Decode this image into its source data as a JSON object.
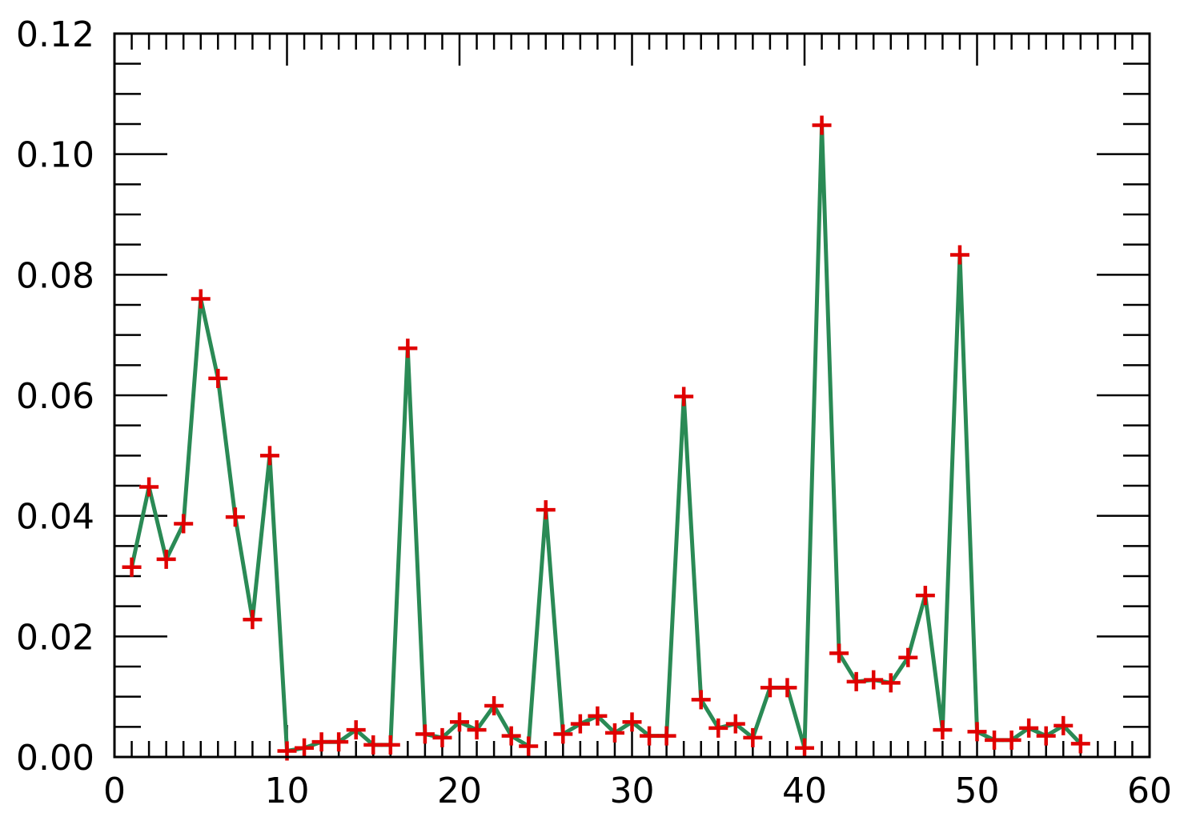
{
  "chart_data": {
    "type": "line",
    "title": "",
    "xlabel": "",
    "ylabel": "",
    "xlim": [
      0,
      60
    ],
    "ylim": [
      0,
      0.12
    ],
    "xticks": [
      0,
      10,
      20,
      30,
      40,
      50,
      60
    ],
    "xtick_labels": [
      "0",
      "10",
      "20",
      "30",
      "40",
      "50",
      "60"
    ],
    "yticks": [
      0,
      0.02,
      0.04,
      0.06,
      0.08,
      0.1,
      0.12
    ],
    "ytick_labels": [
      "0.00",
      "0.02",
      "0.04",
      "0.06",
      "0.08",
      "0.10",
      "0.12"
    ],
    "grid": false,
    "line_color": "#2a8a55",
    "marker_color": "#e00000",
    "marker": "plus",
    "x": [
      1,
      2,
      3,
      4,
      5,
      6,
      7,
      8,
      9,
      10,
      11,
      12,
      13,
      14,
      15,
      16,
      17,
      18,
      19,
      20,
      21,
      22,
      23,
      24,
      25,
      26,
      27,
      28,
      29,
      30,
      31,
      32,
      33,
      34,
      35,
      36,
      37,
      38,
      39,
      40,
      41,
      42,
      43,
      44,
      45,
      46,
      47,
      48,
      49,
      50,
      51,
      52,
      53,
      54,
      55,
      56
    ],
    "values": [
      0.0315,
      0.0448,
      0.0328,
      0.0387,
      0.076,
      0.0628,
      0.0398,
      0.0228,
      0.05,
      0.001,
      0.0015,
      0.0025,
      0.0025,
      0.0045,
      0.002,
      0.002,
      0.0678,
      0.0038,
      0.0032,
      0.0058,
      0.0045,
      0.0085,
      0.0035,
      0.0018,
      0.041,
      0.0038,
      0.0055,
      0.0068,
      0.004,
      0.0058,
      0.0035,
      0.0035,
      0.0598,
      0.0095,
      0.0048,
      0.0055,
      0.0032,
      0.0115,
      0.0115,
      0.0015,
      0.1048,
      0.0172,
      0.0125,
      0.0128,
      0.0123,
      0.0165,
      0.0268,
      0.0045,
      0.0833,
      0.0042,
      0.0028,
      0.0028,
      0.0048,
      0.0035,
      0.0052,
      0.0022
    ]
  }
}
